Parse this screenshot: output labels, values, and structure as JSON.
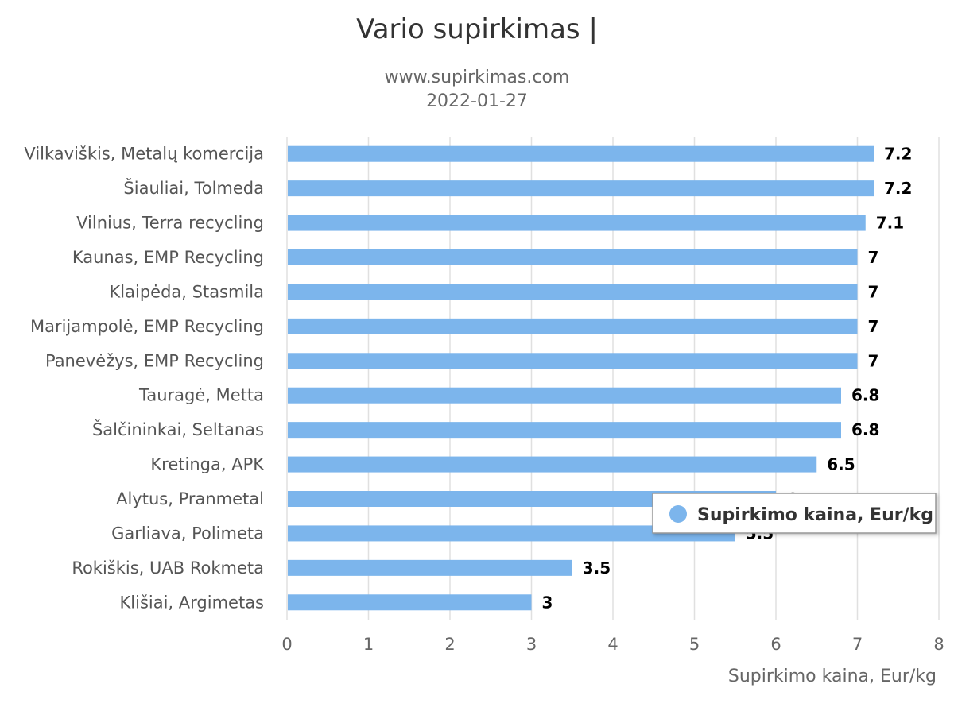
{
  "chart_data": {
    "type": "bar",
    "orientation": "horizontal",
    "title": "Vario supirkimas |",
    "subtitle_lines": [
      "www.supirkimas.com",
      "2022-01-27"
    ],
    "categories": [
      "Vilkaviškis, Metalų komercija",
      "Šiauliai, Tolmeda",
      "Vilnius, Terra recycling",
      "Kaunas, EMP Recycling",
      "Klaipėda, Stasmila",
      "Marijampolė, EMP Recycling",
      "Panevėžys, EMP Recycling",
      "Tauragė, Metta",
      "Šalčininkai, Seltanas",
      "Kretinga, APK",
      "Alytus, Pranmetal",
      "Garliava, Polimeta",
      "Rokiškis, UAB Rokmeta",
      "Klišiai, Argimetas"
    ],
    "series": [
      {
        "name": "Supirkimo kaina, Eur/kg",
        "color": "#7cb5ec",
        "values": [
          7.2,
          7.2,
          7.1,
          7,
          7,
          7,
          7,
          6.8,
          6.8,
          6.5,
          6,
          5.5,
          3.5,
          3
        ],
        "data_labels": [
          "7.2",
          "7.2",
          "7.1",
          "7",
          "7",
          "7",
          "7",
          "6.8",
          "6.8",
          "6.5",
          "6",
          "5.5",
          "3.5",
          "3"
        ]
      }
    ],
    "xlabel": "Supirkimo kaina, Eur/kg",
    "xlim": [
      0,
      8
    ],
    "xticks": [
      0,
      1,
      2,
      3,
      4,
      5,
      6,
      7,
      8
    ],
    "xtick_labels": [
      "0",
      "1",
      "2",
      "3",
      "4",
      "5",
      "6",
      "7",
      "8"
    ],
    "grid": true,
    "legend": {
      "placement": "right",
      "label": "Supirkimo kaina, Eur/kg"
    }
  }
}
